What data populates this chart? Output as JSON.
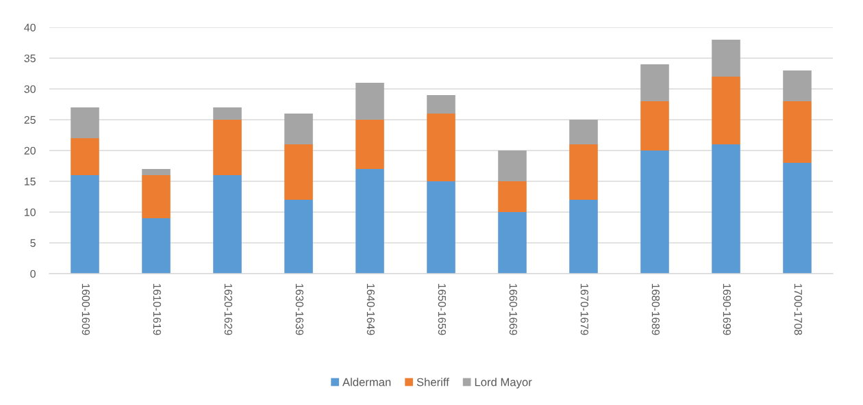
{
  "chart_data": {
    "type": "bar",
    "stacked": true,
    "categories": [
      "1600-1609",
      "1610-1619",
      "1620-1629",
      "1630-1639",
      "1640-1649",
      "1650-1659",
      "1660-1669",
      "1670-1679",
      "1680-1689",
      "1690-1699",
      "1700-1708"
    ],
    "series": [
      {
        "name": "Alderman",
        "color": "#5b9bd5",
        "values": [
          16,
          9,
          16,
          12,
          17,
          15,
          10,
          12,
          20,
          21,
          18
        ]
      },
      {
        "name": "Sheriff",
        "color": "#ed7d31",
        "values": [
          6,
          7,
          9,
          9,
          8,
          11,
          5,
          9,
          8,
          11,
          10
        ]
      },
      {
        "name": "Lord Mayor",
        "color": "#a5a5a5",
        "values": [
          5,
          1,
          2,
          5,
          6,
          3,
          5,
          4,
          6,
          6,
          5
        ]
      }
    ],
    "ylim": [
      0,
      40
    ],
    "yticks": [
      0,
      5,
      10,
      15,
      20,
      25,
      30,
      35,
      40
    ],
    "grid": "y",
    "legend": "bottom"
  }
}
